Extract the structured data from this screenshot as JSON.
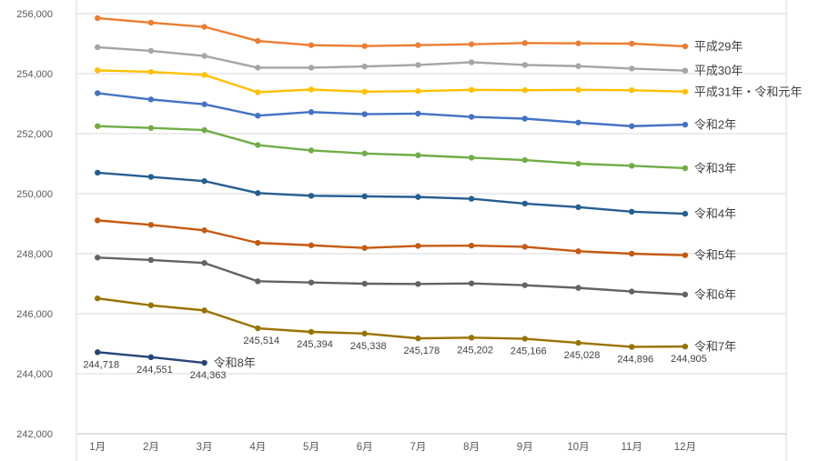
{
  "chart_data": {
    "type": "line",
    "title": "",
    "xlabel": "",
    "ylabel": "",
    "grid": true,
    "legend_position": "line-end-labels",
    "categories": [
      "1月",
      "2月",
      "3月",
      "4月",
      "5月",
      "6月",
      "7月",
      "8月",
      "9月",
      "10月",
      "11月",
      "12月"
    ],
    "y_axis": {
      "min": 242000,
      "max": 256000,
      "step": 2000,
      "tick_labels": [
        "242,000",
        "244,000",
        "246,000",
        "248,000",
        "250,000",
        "252,000",
        "254,000",
        "256,000"
      ]
    },
    "series": [
      {
        "name": "平成29年",
        "color": "#ED7D31",
        "values": [
          255850,
          255700,
          255560,
          255090,
          254950,
          254920,
          254950,
          254980,
          255020,
          255010,
          255000,
          254910
        ]
      },
      {
        "name": "平成30年",
        "color": "#A5A5A5",
        "values": [
          254880,
          254760,
          254590,
          254200,
          254200,
          254240,
          254290,
          254380,
          254290,
          254250,
          254170,
          254100
        ]
      },
      {
        "name": "平成31年・令和元年",
        "color": "#FFC000",
        "values": [
          254110,
          254060,
          253960,
          253380,
          253470,
          253400,
          253420,
          253460,
          253450,
          253460,
          253450,
          253400
        ]
      },
      {
        "name": "令和2年",
        "color": "#4472C4",
        "values": [
          253350,
          253140,
          252980,
          252600,
          252720,
          252650,
          252670,
          252560,
          252500,
          252370,
          252250,
          252300
        ]
      },
      {
        "name": "令和3年",
        "color": "#70AD47",
        "values": [
          252250,
          252190,
          252120,
          251620,
          251440,
          251340,
          251280,
          251200,
          251120,
          251000,
          250930,
          250850
        ]
      },
      {
        "name": "令和4年",
        "color": "#255E91",
        "values": [
          250700,
          250560,
          250420,
          250020,
          249930,
          249910,
          249890,
          249830,
          249670,
          249550,
          249400,
          249330
        ]
      },
      {
        "name": "令和5年",
        "color": "#C55A11",
        "values": [
          249110,
          248960,
          248780,
          248360,
          248280,
          248190,
          248260,
          248270,
          248230,
          248080,
          248000,
          247950
        ]
      },
      {
        "name": "令和6年",
        "color": "#636363",
        "values": [
          247870,
          247790,
          247690,
          247080,
          247040,
          247000,
          246990,
          247010,
          246950,
          246860,
          246740,
          246640
        ]
      },
      {
        "name": "令和7年",
        "color": "#997300",
        "values": [
          246510,
          246280,
          246110,
          245514,
          245394,
          245338,
          245178,
          245202,
          245166,
          245028,
          244896,
          244905
        ],
        "data_labels_from_index": 3,
        "shown_data_labels": [
          "245,514",
          "245,394",
          "245,338",
          "245,178",
          "245,202",
          "245,166",
          "245,028",
          "244,896",
          "244,905"
        ]
      },
      {
        "name": "令和8年",
        "color": "#264478",
        "values": [
          244718,
          244551,
          244363
        ],
        "data_labels_from_index": 0,
        "shown_data_labels": [
          "244,718",
          "244,551",
          "244,363"
        ]
      }
    ]
  },
  "style": {
    "background": "#FFFFFF",
    "gridline_color": "#D9D9D9",
    "axis_line_color": "#BFBFBF",
    "axis_text_color": "#595959",
    "data_label_color": "#404040",
    "series_label_color": "#404040"
  }
}
